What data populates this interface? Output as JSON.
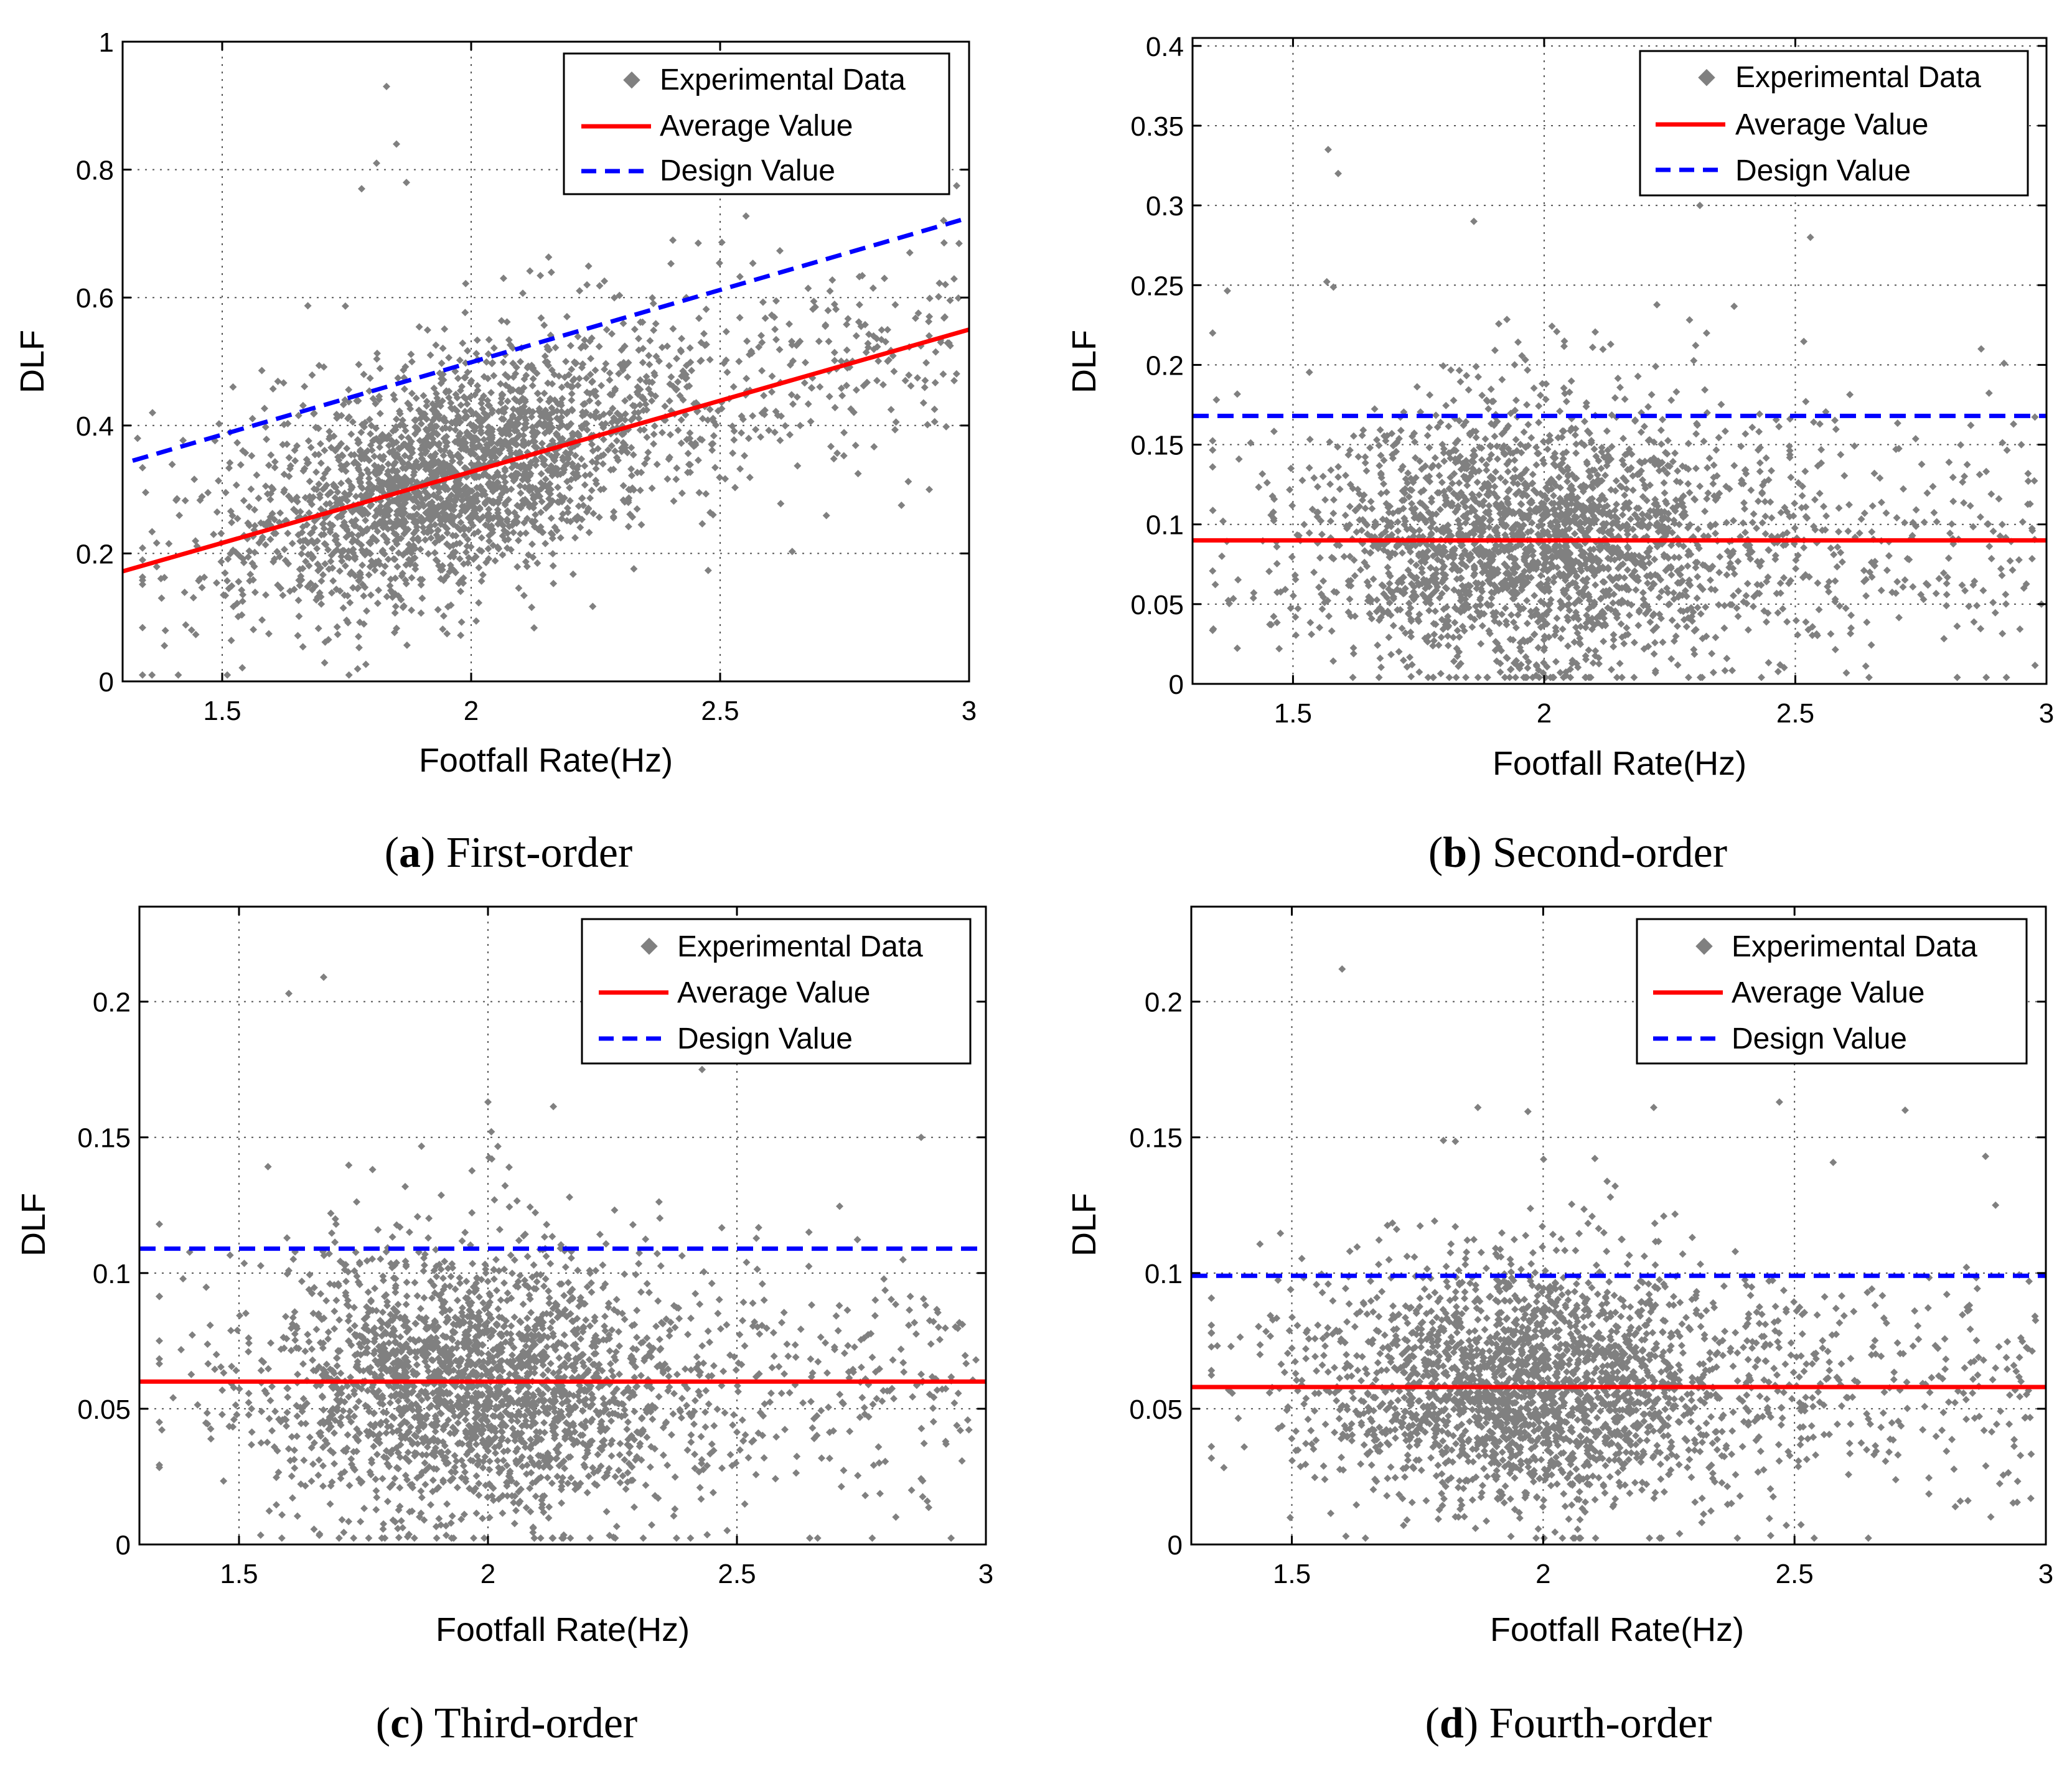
{
  "figure": {
    "panels": [
      {
        "id": "a",
        "caption_letter": "a",
        "caption_text": " First-order",
        "legend": [
          "Experimental Data",
          "Average Value",
          "Design Value"
        ],
        "chart_data": {
          "type": "scatter",
          "title": "",
          "xlabel": "Footfall Rate(Hz)",
          "ylabel": "DLF",
          "xlim": [
            1.3,
            3.0
          ],
          "ylim": [
            0,
            1.0
          ],
          "xticks": [
            1.5,
            2,
            2.5,
            3
          ],
          "xtick_labels": [
            "1.5",
            "2",
            "2.5",
            "3"
          ],
          "yticks": [
            0,
            0.2,
            0.4,
            0.6,
            0.8,
            1.0
          ],
          "ytick_labels": [
            "0",
            "0.2",
            "0.4",
            "0.6",
            "0.8",
            "1"
          ],
          "grid": true,
          "legend_position": "top-right",
          "series": [
            {
              "name": "Experimental Data",
              "kind": "points",
              "color": "#808080",
              "n_points": 2600,
              "trend": {
                "intercept": -0.1174,
                "slope": 0.2225
              },
              "noise_sd": 0.085,
              "outliers": [
                [
                  1.83,
                  0.93
                ],
                [
                  1.85,
                  0.84
                ],
                [
                  1.81,
                  0.81
                ],
                [
                  1.87,
                  0.78
                ],
                [
                  1.78,
                  0.77
                ],
                [
                  2.3,
                  0.78
                ],
                [
                  2.83,
                  0.63
                ],
                [
                  2.92,
                  0.3
                ],
                [
                  2.97,
                  0.47
                ],
                [
                  1.36,
                  0.42
                ],
                [
                  1.33,
                  0.38
                ]
              ]
            },
            {
              "name": "Average Value",
              "kind": "line",
              "color": "#ff0000",
              "dash": "solid",
              "x": [
                1.3,
                3.0
              ],
              "y": [
                0.172,
                0.55
              ]
            },
            {
              "name": "Design Value",
              "kind": "line",
              "color": "#0000ff",
              "dash": "dashed",
              "x": [
                1.32,
                3.0
              ],
              "y": [
                0.345,
                0.725
              ]
            }
          ]
        }
      },
      {
        "id": "b",
        "caption_letter": "b",
        "caption_text": " Second-order",
        "legend": [
          "Experimental Data",
          "Average Value",
          "Design Value"
        ],
        "chart_data": {
          "type": "scatter",
          "title": "",
          "xlabel": "Footfall Rate(Hz)",
          "ylabel": "DLF",
          "xlim": [
            1.3,
            3.0
          ],
          "ylim": [
            0,
            0.405
          ],
          "xticks": [
            1.5,
            2,
            2.5,
            3
          ],
          "xtick_labels": [
            "1.5",
            "2",
            "2.5",
            "3"
          ],
          "yticks": [
            0,
            0.05,
            0.1,
            0.15,
            0.2,
            0.25,
            0.3,
            0.35,
            0.4
          ],
          "ytick_labels": [
            "0",
            "0.05",
            "0.1",
            "0.15",
            "0.2",
            "0.25",
            "0.3",
            "0.35",
            "0.4"
          ],
          "grid": true,
          "legend_position": "top-right",
          "series": [
            {
              "name": "Experimental Data",
              "kind": "points",
              "color": "#808080",
              "n_points": 2600,
              "trend": {
                "intercept": 0.089,
                "slope": 0
              },
              "noise_sd": 0.042,
              "outliers": [
                [
                  1.57,
                  0.335
                ],
                [
                  1.59,
                  0.32
                ],
                [
                  1.86,
                  0.29
                ],
                [
                  2.53,
                  0.28
                ],
                [
                  1.34,
                  0.22
                ],
                [
                  2.31,
                  0.3
                ],
                [
                  2.87,
                  0.21
                ],
                [
                  2.95,
                  0.15
                ],
                [
                  2.99,
                  0.05
                ]
              ]
            },
            {
              "name": "Average Value",
              "kind": "line",
              "color": "#ff0000",
              "dash": "solid",
              "x": [
                1.3,
                3.0
              ],
              "y": [
                0.09,
                0.09
              ]
            },
            {
              "name": "Design Value",
              "kind": "line",
              "color": "#0000ff",
              "dash": "dashed",
              "x": [
                1.3,
                3.0
              ],
              "y": [
                0.168,
                0.168
              ]
            }
          ]
        }
      },
      {
        "id": "c",
        "caption_letter": "c",
        "caption_text": " Third-order",
        "legend": [
          "Experimental Data",
          "Average Value",
          "Design Value"
        ],
        "chart_data": {
          "type": "scatter",
          "title": "",
          "xlabel": "Footfall Rate(Hz)",
          "ylabel": "DLF",
          "xlim": [
            1.3,
            3.0
          ],
          "ylim": [
            0,
            0.235
          ],
          "xticks": [
            1.5,
            2,
            2.5,
            3
          ],
          "xtick_labels": [
            "1.5",
            "2",
            "2.5",
            "3"
          ],
          "yticks": [
            0,
            0.05,
            0.1,
            0.15,
            0.2
          ],
          "ytick_labels": [
            "0",
            "0.05",
            "0.1",
            "0.15",
            "0.2"
          ],
          "grid": true,
          "legend_position": "top-right",
          "series": [
            {
              "name": "Experimental Data",
              "kind": "points",
              "color": "#808080",
              "n_points": 2600,
              "trend": {
                "intercept": 0.058,
                "slope": 0
              },
              "noise_sd": 0.024,
              "outliers": [
                [
                  1.67,
                  0.209
                ],
                [
                  1.6,
                  0.203
                ],
                [
                  2.0,
                  0.163
                ],
                [
                  2.43,
                  0.175
                ],
                [
                  2.87,
                  0.15
                ],
                [
                  2.92,
                  0.037
                ],
                [
                  2.98,
                  0.068
                ],
                [
                  1.34,
                  0.118
                ]
              ]
            },
            {
              "name": "Average Value",
              "kind": "line",
              "color": "#ff0000",
              "dash": "solid",
              "x": [
                1.3,
                3.0
              ],
              "y": [
                0.06,
                0.06
              ]
            },
            {
              "name": "Design Value",
              "kind": "line",
              "color": "#0000ff",
              "dash": "dashed",
              "x": [
                1.3,
                3.0
              ],
              "y": [
                0.109,
                0.109
              ]
            }
          ]
        }
      },
      {
        "id": "d",
        "caption_letter": "d",
        "caption_text": " Fourth-order",
        "legend": [
          "Experimental Data",
          "Average Value",
          "Design Value"
        ],
        "chart_data": {
          "type": "scatter",
          "title": "",
          "xlabel": "Footfall Rate(Hz)",
          "ylabel": "DLF",
          "xlim": [
            1.3,
            3.0
          ],
          "ylim": [
            0,
            0.235
          ],
          "xticks": [
            1.5,
            2,
            2.5,
            3
          ],
          "xtick_labels": [
            "1.5",
            "2",
            "2.5",
            "3"
          ],
          "yticks": [
            0,
            0.05,
            0.1,
            0.15,
            0.2
          ],
          "ytick_labels": [
            "0",
            "0.05",
            "0.1",
            "0.15",
            "0.2"
          ],
          "grid": true,
          "legend_position": "top-right",
          "series": [
            {
              "name": "Experimental Data",
              "kind": "points",
              "color": "#808080",
              "n_points": 2600,
              "trend": {
                "intercept": 0.057,
                "slope": 0
              },
              "noise_sd": 0.022,
              "outliers": [
                [
                  1.6,
                  0.212
                ],
                [
                  1.87,
                  0.161
                ],
                [
                  2.22,
                  0.161
                ],
                [
                  2.47,
                  0.163
                ],
                [
                  2.72,
                  0.16
                ],
                [
                  2.88,
                  0.143
                ],
                [
                  2.97,
                  0.017
                ],
                [
                  2.9,
                  0.125
                ]
              ]
            },
            {
              "name": "Average Value",
              "kind": "line",
              "color": "#ff0000",
              "dash": "solid",
              "x": [
                1.3,
                3.0
              ],
              "y": [
                0.058,
                0.058
              ]
            },
            {
              "name": "Design Value",
              "kind": "line",
              "color": "#0000ff",
              "dash": "dashed",
              "x": [
                1.3,
                3.0
              ],
              "y": [
                0.099,
                0.099
              ]
            }
          ]
        }
      }
    ]
  }
}
